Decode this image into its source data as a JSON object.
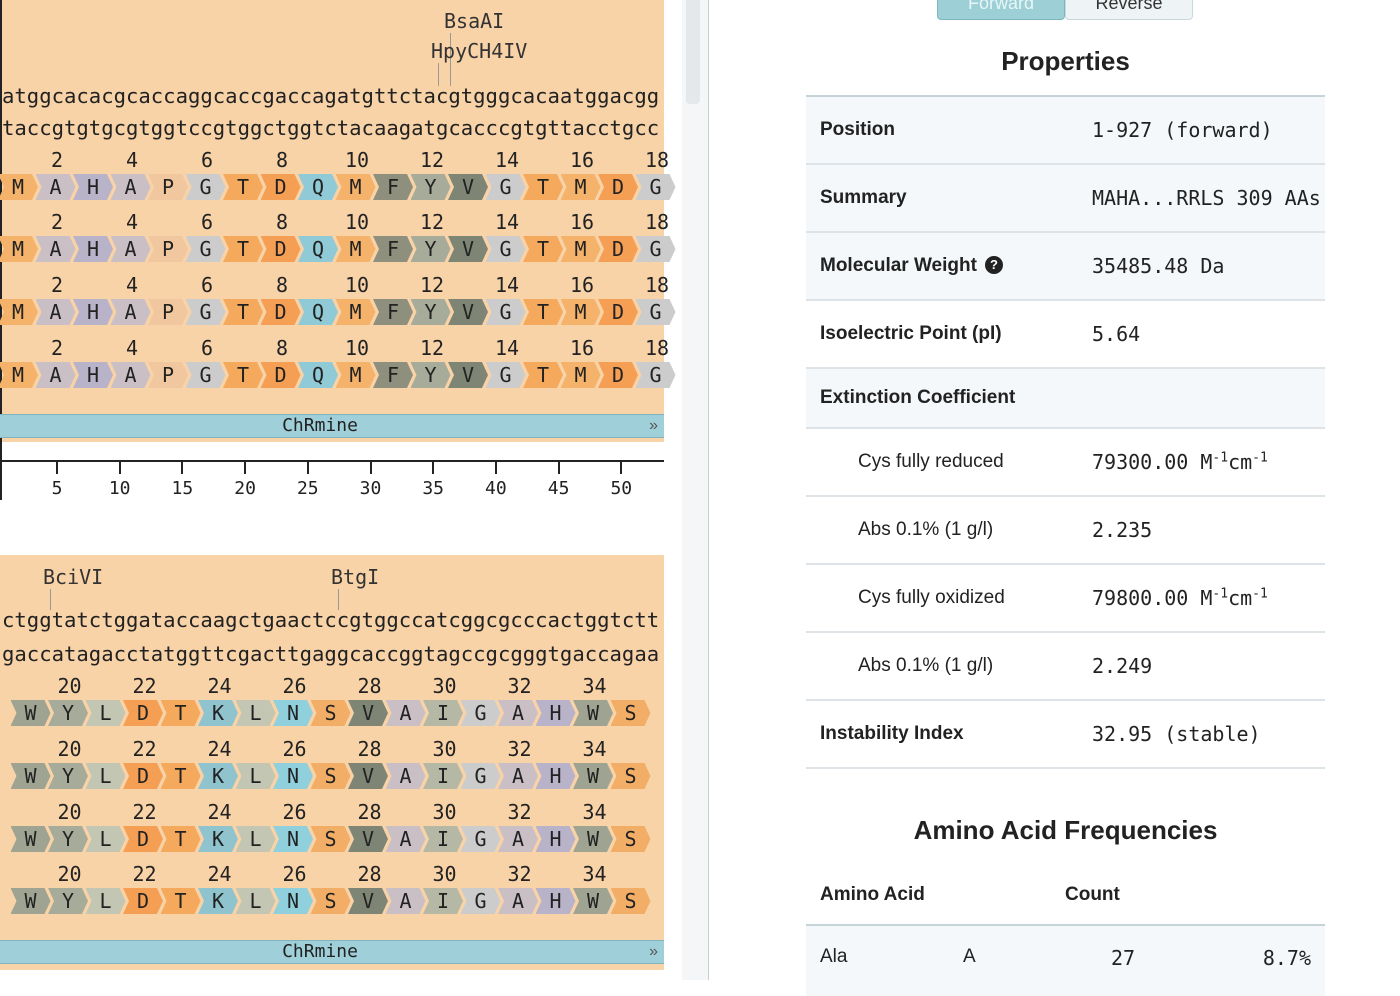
{
  "sequence_viewer": {
    "blocks": [
      {
        "enzymes": [
          {
            "name": "BsaAI",
            "label_x": 444,
            "label_y": 9,
            "tick_x": 450
          },
          {
            "name": "HpyCH4IV",
            "label_x": 431,
            "label_y": 39,
            "tick_x": 438
          }
        ],
        "dna_top": "atggcacacgcaccaggcaccgaccagatgttctacgtgggcacaatggacgg",
        "dna_bottom": "taccgtgtgcgtggtccgtggctggtctacaagatgcacccgtgttacctgcc",
        "position_numbers": [
          "2",
          "4",
          "6",
          "8",
          "10",
          "12",
          "14",
          "16",
          "18"
        ],
        "translation": [
          "M",
          "A",
          "H",
          "A",
          "P",
          "G",
          "T",
          "D",
          "Q",
          "M",
          "F",
          "Y",
          "V",
          "G",
          "T",
          "M",
          "D",
          "G"
        ],
        "feature": "ChRmine",
        "axis_labels": [
          "5",
          "10",
          "15",
          "20",
          "25",
          "30",
          "35",
          "40",
          "45",
          "50"
        ]
      },
      {
        "enzymes": [
          {
            "name": "BciVI",
            "label_x": 43,
            "label_y": 565,
            "tick_x": 50
          },
          {
            "name": "BtgI",
            "label_x": 331,
            "label_y": 565,
            "tick_x": 338
          }
        ],
        "dna_top": "ctggtatctggataccaagctgaactccgtggccatcggcgcccactggtctt",
        "dna_bottom": "gaccatagacctatggttcgacttgaggcaccggtagccgcgggtgaccagaa",
        "position_numbers": [
          "20",
          "22",
          "24",
          "26",
          "28",
          "30",
          "32",
          "34"
        ],
        "translation": [
          "W",
          "Y",
          "L",
          "D",
          "T",
          "K",
          "L",
          "N",
          "S",
          "V",
          "A",
          "I",
          "G",
          "A",
          "H",
          "W",
          "S"
        ],
        "feature": "ChRmine"
      }
    ]
  },
  "aa_colors": {
    "M": "#f4b26a",
    "A": "#c9bfc4",
    "H": "#b9b3c9",
    "P": "#f0c79e",
    "G": "#cccccc",
    "T": "#f5a95c",
    "D": "#f59f55",
    "Q": "#8fcad6",
    "F": "#8e8f7c",
    "Y": "#a7ab99",
    "V": "#7e8574",
    "W": "#9fa391",
    "L": "#c3c6b2",
    "K": "#8fc4cf",
    "N": "#8fd0dc",
    "S": "#f2ae66",
    "I": "#b5b8a5"
  },
  "tabs": {
    "forward": "Forward",
    "reverse": "Reverse"
  },
  "properties": {
    "title": "Properties",
    "position_label": "Position",
    "position_value": "1-927 (forward)",
    "summary_label": "Summary",
    "summary_value": "MAHA...RRLS 309 AAs",
    "mw_label": "Molecular Weight",
    "mw_value": "35485.48 Da",
    "pi_label": "Isoelectric Point (pI)",
    "pi_value": "5.64",
    "ext_label": "Extinction Coefficient",
    "cys_reduced_label": "Cys fully reduced",
    "cys_reduced_value": "79300.00 M",
    "abs1_label": "Abs 0.1% (1 g/l)",
    "abs1_value": "2.235",
    "cys_oxidized_label": "Cys fully oxidized",
    "cys_oxidized_value": "79800.00 M",
    "abs2_label": "Abs 0.1% (1 g/l)",
    "abs2_value": "2.249",
    "instability_label": "Instability Index",
    "instability_value": "32.95 (stable)",
    "unit_exp": "-1",
    "unit_cm": "cm"
  },
  "frequencies": {
    "title": "Amino Acid Frequencies",
    "col_amino": "Amino Acid",
    "col_count": "Count",
    "rows": [
      {
        "name": "Ala",
        "code": "A",
        "count": "27",
        "percent": "8.7%"
      }
    ]
  }
}
